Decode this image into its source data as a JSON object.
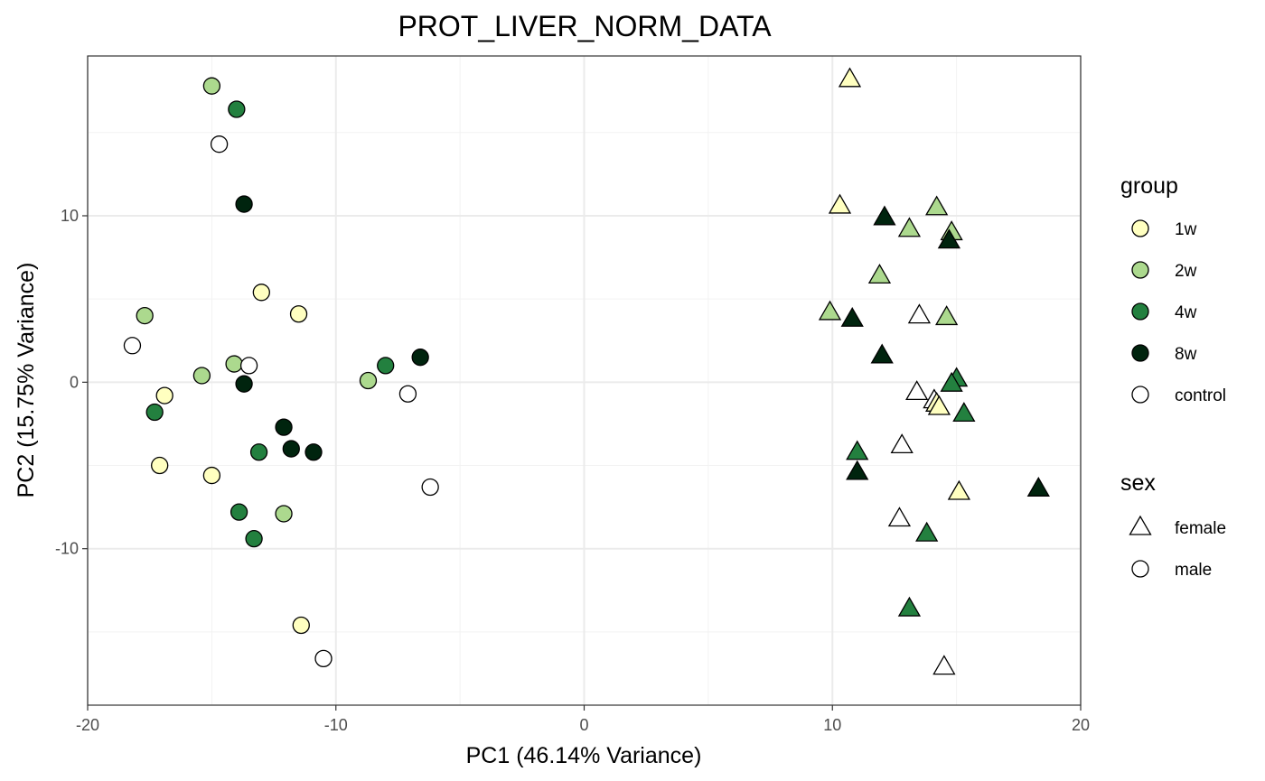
{
  "chart_data": {
    "type": "scatter",
    "title": "PROT_LIVER_NORM_DATA",
    "xlabel": "PC1 (46.14% Variance)",
    "ylabel": "PC2 (15.75% Variance)",
    "xlim": [
      -20,
      20
    ],
    "ylim": [
      -19.4,
      19.6
    ],
    "xticks": [
      -20,
      -10,
      0,
      10,
      20
    ],
    "yticks": [
      -10,
      0,
      10
    ],
    "xtick_labels": [
      "-20",
      "-10",
      "0",
      "10",
      "20"
    ],
    "ytick_labels": [
      "-10",
      "0",
      "10"
    ],
    "grid": true,
    "legend_position": "right",
    "colors": {
      "1w": "#ffffc0",
      "2w": "#acd98e",
      "4w": "#23803f",
      "8w": "#00240e",
      "control": "#ffffff"
    },
    "legends": [
      {
        "title": "group",
        "entries": [
          {
            "label": "1w",
            "group": "1w"
          },
          {
            "label": "2w",
            "group": "2w"
          },
          {
            "label": "4w",
            "group": "4w"
          },
          {
            "label": "8w",
            "group": "8w"
          },
          {
            "label": "control",
            "group": "control"
          }
        ]
      },
      {
        "title": "sex",
        "entries": [
          {
            "label": "female",
            "shape": "triangle"
          },
          {
            "label": "male",
            "shape": "circle"
          }
        ]
      }
    ],
    "points": [
      {
        "x": -15.0,
        "y": 17.8,
        "group": "2w",
        "sex": "male"
      },
      {
        "x": -14.0,
        "y": 16.4,
        "group": "4w",
        "sex": "male"
      },
      {
        "x": -14.7,
        "y": 14.3,
        "group": "control",
        "sex": "male"
      },
      {
        "x": -13.7,
        "y": 10.7,
        "group": "8w",
        "sex": "male"
      },
      {
        "x": -13.0,
        "y": 5.4,
        "group": "1w",
        "sex": "male"
      },
      {
        "x": -11.5,
        "y": 4.1,
        "group": "1w",
        "sex": "male"
      },
      {
        "x": -17.7,
        "y": 4.0,
        "group": "2w",
        "sex": "male"
      },
      {
        "x": -18.2,
        "y": 2.2,
        "group": "control",
        "sex": "male"
      },
      {
        "x": -14.1,
        "y": 1.1,
        "group": "2w",
        "sex": "male"
      },
      {
        "x": -13.5,
        "y": 1.0,
        "group": "control",
        "sex": "male"
      },
      {
        "x": -15.4,
        "y": 0.4,
        "group": "2w",
        "sex": "male"
      },
      {
        "x": -13.7,
        "y": -0.1,
        "group": "8w",
        "sex": "male"
      },
      {
        "x": -16.9,
        "y": -0.8,
        "group": "1w",
        "sex": "male"
      },
      {
        "x": -17.3,
        "y": -1.8,
        "group": "4w",
        "sex": "male"
      },
      {
        "x": -12.1,
        "y": -2.7,
        "group": "8w",
        "sex": "male"
      },
      {
        "x": -11.8,
        "y": -4.0,
        "group": "8w",
        "sex": "male"
      },
      {
        "x": -13.1,
        "y": -4.2,
        "group": "4w",
        "sex": "male"
      },
      {
        "x": -10.9,
        "y": -4.2,
        "group": "8w",
        "sex": "male"
      },
      {
        "x": -17.1,
        "y": -5.0,
        "group": "1w",
        "sex": "male"
      },
      {
        "x": -15.0,
        "y": -5.6,
        "group": "1w",
        "sex": "male"
      },
      {
        "x": -13.9,
        "y": -7.8,
        "group": "4w",
        "sex": "male"
      },
      {
        "x": -12.1,
        "y": -7.9,
        "group": "2w",
        "sex": "male"
      },
      {
        "x": -13.3,
        "y": -9.4,
        "group": "4w",
        "sex": "male"
      },
      {
        "x": -11.4,
        "y": -14.6,
        "group": "1w",
        "sex": "male"
      },
      {
        "x": -10.5,
        "y": -16.6,
        "group": "control",
        "sex": "male"
      },
      {
        "x": -6.6,
        "y": 1.5,
        "group": "8w",
        "sex": "male"
      },
      {
        "x": -8.0,
        "y": 1.0,
        "group": "4w",
        "sex": "male"
      },
      {
        "x": -8.7,
        "y": 0.1,
        "group": "2w",
        "sex": "male"
      },
      {
        "x": -7.1,
        "y": -0.7,
        "group": "control",
        "sex": "male"
      },
      {
        "x": -6.2,
        "y": -6.3,
        "group": "control",
        "sex": "male"
      },
      {
        "x": 10.7,
        "y": 18.2,
        "group": "1w",
        "sex": "female"
      },
      {
        "x": 10.3,
        "y": 10.6,
        "group": "1w",
        "sex": "female"
      },
      {
        "x": 14.2,
        "y": 10.5,
        "group": "2w",
        "sex": "female"
      },
      {
        "x": 12.1,
        "y": 9.9,
        "group": "8w",
        "sex": "female"
      },
      {
        "x": 13.1,
        "y": 9.2,
        "group": "2w",
        "sex": "female"
      },
      {
        "x": 14.8,
        "y": 9.0,
        "group": "2w",
        "sex": "female"
      },
      {
        "x": 14.7,
        "y": 8.5,
        "group": "8w",
        "sex": "female"
      },
      {
        "x": 11.9,
        "y": 6.4,
        "group": "2w",
        "sex": "female"
      },
      {
        "x": 9.9,
        "y": 4.2,
        "group": "2w",
        "sex": "female"
      },
      {
        "x": 10.8,
        "y": 3.8,
        "group": "8w",
        "sex": "female"
      },
      {
        "x": 13.5,
        "y": 4.0,
        "group": "control",
        "sex": "female"
      },
      {
        "x": 14.6,
        "y": 3.9,
        "group": "2w",
        "sex": "female"
      },
      {
        "x": 12.0,
        "y": 1.6,
        "group": "8w",
        "sex": "female"
      },
      {
        "x": 15.0,
        "y": 0.2,
        "group": "4w",
        "sex": "female"
      },
      {
        "x": 14.8,
        "y": -0.1,
        "group": "4w",
        "sex": "female"
      },
      {
        "x": 13.4,
        "y": -0.6,
        "group": "control",
        "sex": "female"
      },
      {
        "x": 14.1,
        "y": -1.1,
        "group": "control",
        "sex": "female"
      },
      {
        "x": 14.2,
        "y": -1.3,
        "group": "1w",
        "sex": "female"
      },
      {
        "x": 14.3,
        "y": -1.5,
        "group": "1w",
        "sex": "female"
      },
      {
        "x": 15.3,
        "y": -1.9,
        "group": "4w",
        "sex": "female"
      },
      {
        "x": 12.8,
        "y": -3.8,
        "group": "control",
        "sex": "female"
      },
      {
        "x": 11.0,
        "y": -4.2,
        "group": "4w",
        "sex": "female"
      },
      {
        "x": 11.0,
        "y": -5.4,
        "group": "8w",
        "sex": "female"
      },
      {
        "x": 15.1,
        "y": -6.6,
        "group": "1w",
        "sex": "female"
      },
      {
        "x": 18.3,
        "y": -6.4,
        "group": "8w",
        "sex": "female"
      },
      {
        "x": 12.7,
        "y": -8.2,
        "group": "control",
        "sex": "female"
      },
      {
        "x": 13.8,
        "y": -9.1,
        "group": "4w",
        "sex": "female"
      },
      {
        "x": 13.1,
        "y": -13.6,
        "group": "4w",
        "sex": "female"
      },
      {
        "x": 14.5,
        "y": -17.1,
        "group": "control",
        "sex": "female"
      }
    ]
  }
}
